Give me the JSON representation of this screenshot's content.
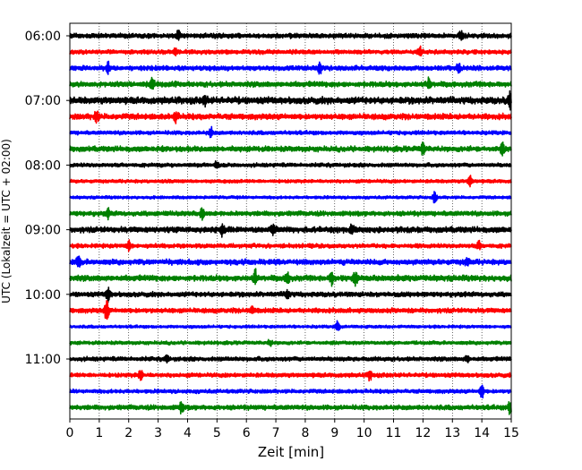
{
  "chart_data": {
    "type": "line",
    "title": "",
    "xlabel": "Zeit  [min]",
    "ylabel": "UTC (Lokalzeit = UTC + 02:00)",
    "xlim": [
      0,
      15
    ],
    "x_ticks": [
      "0",
      "1",
      "2",
      "3",
      "4",
      "5",
      "6",
      "7",
      "8",
      "9",
      "10",
      "11",
      "12",
      "13",
      "14",
      "15"
    ],
    "y_ticks": [
      "06:00",
      "07:00",
      "08:00",
      "09:00",
      "10:00",
      "11:00"
    ],
    "start_time": "06:00",
    "row_interval_min": 15,
    "row_colors": [
      "#000000",
      "#ff0000",
      "#0000ff",
      "#008000"
    ],
    "grid": "vertical dotted lines at each minute",
    "rows": [
      {
        "start": "06:00",
        "noise": 0.25,
        "events": [
          {
            "t": 3.7,
            "a": 0.6
          },
          {
            "t": 13.3,
            "a": 0.5
          }
        ]
      },
      {
        "start": "06:15",
        "noise": 0.22,
        "events": [
          {
            "t": 3.6,
            "a": 0.5
          },
          {
            "t": 11.9,
            "a": 0.6
          }
        ]
      },
      {
        "start": "06:30",
        "noise": 0.25,
        "events": [
          {
            "t": 1.3,
            "a": 0.7
          },
          {
            "t": 8.5,
            "a": 0.8
          },
          {
            "t": 13.2,
            "a": 0.6
          }
        ]
      },
      {
        "start": "06:45",
        "noise": 0.28,
        "events": [
          {
            "t": 2.8,
            "a": 0.6
          },
          {
            "t": 12.2,
            "a": 0.7
          }
        ]
      },
      {
        "start": "07:00",
        "noise": 0.35,
        "events": [
          {
            "t": 4.6,
            "a": 0.6
          },
          {
            "t": 14.95,
            "a": 1.0
          }
        ]
      },
      {
        "start": "07:15",
        "noise": 0.3,
        "events": [
          {
            "t": 0.9,
            "a": 0.8
          },
          {
            "t": 3.6,
            "a": 0.7
          }
        ]
      },
      {
        "start": "07:30",
        "noise": 0.2,
        "events": [
          {
            "t": 4.8,
            "a": 0.6
          }
        ]
      },
      {
        "start": "07:45",
        "noise": 0.28,
        "events": [
          {
            "t": 12.0,
            "a": 0.8
          },
          {
            "t": 14.7,
            "a": 0.6
          }
        ]
      },
      {
        "start": "08:00",
        "noise": 0.2,
        "events": [
          {
            "t": 5.0,
            "a": 0.5
          }
        ]
      },
      {
        "start": "08:15",
        "noise": 0.18,
        "events": [
          {
            "t": 13.6,
            "a": 0.7
          }
        ]
      },
      {
        "start": "08:30",
        "noise": 0.15,
        "events": [
          {
            "t": 12.4,
            "a": 0.7
          }
        ]
      },
      {
        "start": "08:45",
        "noise": 0.25,
        "events": [
          {
            "t": 1.3,
            "a": 0.5
          },
          {
            "t": 4.5,
            "a": 0.8
          }
        ]
      },
      {
        "start": "09:00",
        "noise": 0.3,
        "events": [
          {
            "t": 5.2,
            "a": 0.7
          },
          {
            "t": 6.9,
            "a": 0.6
          },
          {
            "t": 9.6,
            "a": 0.6
          }
        ]
      },
      {
        "start": "09:15",
        "noise": 0.22,
        "events": [
          {
            "t": 2.0,
            "a": 0.6
          },
          {
            "t": 13.9,
            "a": 0.5
          }
        ]
      },
      {
        "start": "09:30",
        "noise": 0.28,
        "events": [
          {
            "t": 0.3,
            "a": 0.6
          },
          {
            "t": 13.5,
            "a": 0.5
          }
        ]
      },
      {
        "start": "09:45",
        "noise": 0.3,
        "events": [
          {
            "t": 6.3,
            "a": 0.9
          },
          {
            "t": 7.4,
            "a": 0.8
          },
          {
            "t": 8.9,
            "a": 0.8
          },
          {
            "t": 9.7,
            "a": 0.9
          }
        ]
      },
      {
        "start": "10:00",
        "noise": 0.25,
        "events": [
          {
            "t": 1.3,
            "a": 0.8
          },
          {
            "t": 7.4,
            "a": 0.5
          }
        ]
      },
      {
        "start": "10:15",
        "noise": 0.25,
        "events": [
          {
            "t": 1.25,
            "a": 1.4
          },
          {
            "t": 6.2,
            "a": 0.5
          }
        ]
      },
      {
        "start": "10:30",
        "noise": 0.15,
        "events": [
          {
            "t": 9.1,
            "a": 0.8
          }
        ]
      },
      {
        "start": "10:45",
        "noise": 0.18,
        "events": [
          {
            "t": 6.8,
            "a": 0.4
          }
        ]
      },
      {
        "start": "11:00",
        "noise": 0.22,
        "events": [
          {
            "t": 3.3,
            "a": 0.4
          },
          {
            "t": 13.5,
            "a": 0.4
          }
        ]
      },
      {
        "start": "11:15",
        "noise": 0.22,
        "events": [
          {
            "t": 2.4,
            "a": 0.6
          },
          {
            "t": 10.2,
            "a": 0.6
          }
        ]
      },
      {
        "start": "11:30",
        "noise": 0.2,
        "events": [
          {
            "t": 14.0,
            "a": 0.9
          }
        ]
      },
      {
        "start": "11:45",
        "noise": 0.25,
        "events": [
          {
            "t": 3.8,
            "a": 0.7
          },
          {
            "t": 14.95,
            "a": 0.7
          }
        ]
      }
    ]
  }
}
